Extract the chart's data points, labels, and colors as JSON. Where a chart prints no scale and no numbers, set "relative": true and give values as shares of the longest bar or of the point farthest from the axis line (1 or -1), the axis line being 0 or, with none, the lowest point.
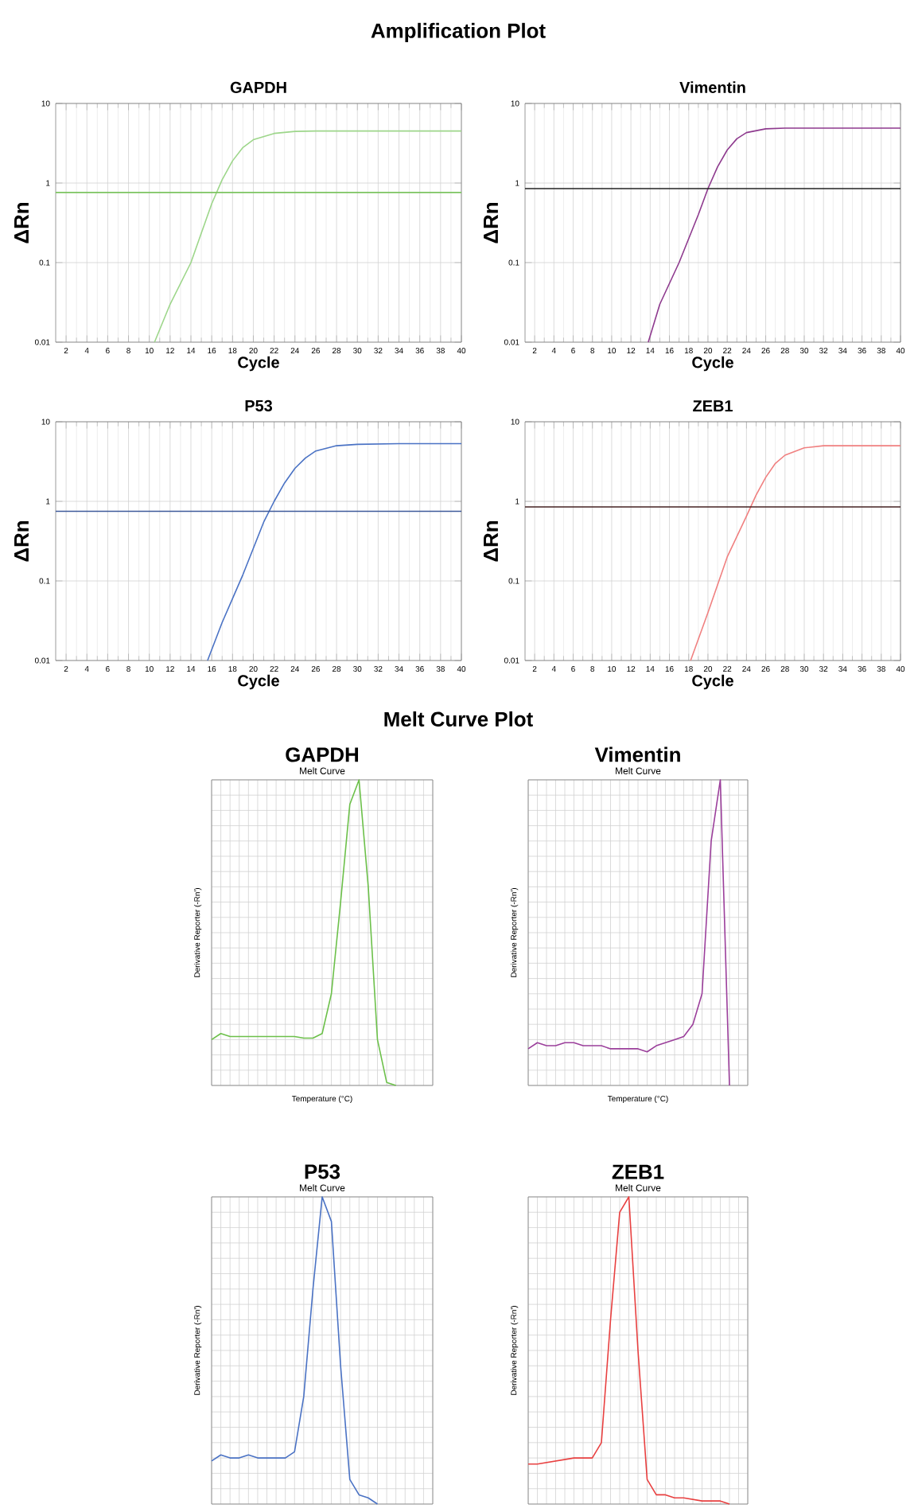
{
  "chart_data": [
    {
      "type": "line",
      "title": "GAPDH",
      "annotations": [
        "Amplification Plot"
      ],
      "xlabel": "Cycle",
      "ylabel": "ΔRn",
      "log": "y",
      "grid": true,
      "xlim": [
        1,
        40
      ],
      "xticks": [
        2,
        4,
        6,
        8,
        10,
        12,
        14,
        16,
        18,
        20,
        22,
        24,
        26,
        28,
        30,
        32,
        34,
        36,
        38,
        40
      ],
      "ylim": [
        0.01,
        10
      ],
      "yticks": [
        0.01,
        0.1,
        1,
        10
      ],
      "ref_lines": [
        {
          "axis": "y",
          "value": 0.76,
          "color": "#7cc460"
        }
      ],
      "series": [
        {
          "color": "#9dd68a",
          "x": [
            10.5,
            12,
            14,
            16,
            17,
            18,
            19,
            20,
            22,
            24,
            26,
            30,
            40
          ],
          "values": [
            0.01,
            0.03,
            0.1,
            0.55,
            1.1,
            1.9,
            2.8,
            3.5,
            4.2,
            4.45,
            4.5,
            4.5,
            4.5
          ]
        }
      ]
    },
    {
      "type": "line",
      "title": "Vimentin",
      "xlabel": "Cycle",
      "ylabel": "ΔRn",
      "log": "y",
      "grid": true,
      "xlim": [
        1,
        40
      ],
      "xticks": [
        2,
        4,
        6,
        8,
        10,
        12,
        14,
        16,
        18,
        20,
        22,
        24,
        26,
        28,
        30,
        32,
        34,
        36,
        38,
        40
      ],
      "ylim": [
        0.01,
        10
      ],
      "yticks": [
        0.01,
        0.1,
        1,
        10
      ],
      "ref_lines": [
        {
          "axis": "y",
          "value": 0.85,
          "color": "#222222"
        }
      ],
      "series": [
        {
          "color": "#8e3a8e",
          "x": [
            13.8,
            15,
            17,
            19,
            20,
            21,
            22,
            23,
            24,
            26,
            28,
            30,
            40
          ],
          "values": [
            0.01,
            0.03,
            0.1,
            0.4,
            0.85,
            1.6,
            2.6,
            3.6,
            4.3,
            4.8,
            4.9,
            4.9,
            4.9
          ]
        }
      ]
    },
    {
      "type": "line",
      "title": "P53",
      "xlabel": "Cycle",
      "ylabel": "ΔRn",
      "log": "y",
      "grid": true,
      "xlim": [
        1,
        40
      ],
      "xticks": [
        2,
        4,
        6,
        8,
        10,
        12,
        14,
        16,
        18,
        20,
        22,
        24,
        26,
        28,
        30,
        32,
        34,
        36,
        38,
        40
      ],
      "ylim": [
        0.01,
        10
      ],
      "yticks": [
        0.01,
        0.1,
        1,
        10
      ],
      "ref_lines": [
        {
          "axis": "y",
          "value": 0.75,
          "color": "#3d5a9a"
        }
      ],
      "series": [
        {
          "color": "#4a72c4",
          "x": [
            15.6,
            17,
            19,
            21,
            22,
            23,
            24,
            25,
            26,
            28,
            30,
            34,
            40
          ],
          "values": [
            0.01,
            0.03,
            0.12,
            0.55,
            1.0,
            1.7,
            2.6,
            3.5,
            4.3,
            5.0,
            5.2,
            5.3,
            5.3
          ]
        }
      ]
    },
    {
      "type": "line",
      "title": "ZEB1",
      "xlabel": "Cycle",
      "ylabel": "ΔRn",
      "log": "y",
      "grid": true,
      "xlim": [
        1,
        40
      ],
      "xticks": [
        2,
        4,
        6,
        8,
        10,
        12,
        14,
        16,
        18,
        20,
        22,
        24,
        26,
        28,
        30,
        32,
        34,
        36,
        38,
        40
      ],
      "ylim": [
        0.01,
        10
      ],
      "yticks": [
        0.01,
        0.1,
        1,
        10
      ],
      "ref_lines": [
        {
          "axis": "y",
          "value": 0.85,
          "color": "#442222"
        }
      ],
      "series": [
        {
          "color": "#f08080",
          "x": [
            18.2,
            20,
            22,
            24,
            25,
            26,
            27,
            28,
            30,
            32,
            34,
            40
          ],
          "values": [
            0.01,
            0.04,
            0.2,
            0.65,
            1.2,
            2.0,
            3.0,
            3.8,
            4.7,
            5.0,
            5.0,
            5.0
          ]
        }
      ]
    },
    {
      "type": "line",
      "title": "GAPDH",
      "subtitle": "Melt Curve",
      "annotations": [
        "Melt Curve Plot"
      ],
      "xlabel": "Temperature (°C)",
      "ylabel": "Derivative Reporter (-Rn')",
      "relative": true,
      "grid": true,
      "categories": [
        null,
        null,
        null,
        null,
        null,
        null,
        null,
        null,
        null,
        null,
        null,
        null,
        null,
        null,
        null,
        null,
        null,
        null,
        null,
        null,
        null,
        null,
        null,
        null,
        null
      ],
      "series": [
        {
          "color": "#6cc04a",
          "values": [
            0.15,
            0.17,
            0.16,
            0.16,
            0.16,
            0.16,
            0.16,
            0.16,
            0.16,
            0.16,
            0.155,
            0.155,
            0.17,
            0.3,
            0.6,
            0.92,
            1.0,
            0.65,
            0.15,
            0.01,
            0.0,
            null,
            null,
            null,
            null
          ]
        }
      ]
    },
    {
      "type": "line",
      "title": "Vimentin",
      "subtitle": "Melt Curve",
      "xlabel": "Temperature (°C)",
      "ylabel": "Derivative Reporter (-Rn')",
      "relative": true,
      "grid": true,
      "categories": [
        null,
        null,
        null,
        null,
        null,
        null,
        null,
        null,
        null,
        null,
        null,
        null,
        null,
        null,
        null,
        null,
        null,
        null,
        null,
        null,
        null,
        null,
        null,
        null,
        null
      ],
      "series": [
        {
          "color": "#9b3f9b",
          "values": [
            0.12,
            0.14,
            0.13,
            0.13,
            0.14,
            0.14,
            0.13,
            0.13,
            0.13,
            0.12,
            0.12,
            0.12,
            0.12,
            0.11,
            0.13,
            0.14,
            0.15,
            0.16,
            0.2,
            0.3,
            0.8,
            1.0,
            0.0,
            null,
            null
          ]
        }
      ]
    },
    {
      "type": "line",
      "title": "P53",
      "subtitle": "Melt Curve",
      "ylabel": "Derivative Reporter (-Rn')",
      "relative": true,
      "grid": true,
      "categories": [
        null,
        null,
        null,
        null,
        null,
        null,
        null,
        null,
        null,
        null,
        null,
        null,
        null,
        null,
        null,
        null,
        null,
        null,
        null,
        null,
        null,
        null,
        null,
        null,
        null
      ],
      "series": [
        {
          "color": "#4a72c4",
          "values": [
            0.14,
            0.16,
            0.15,
            0.15,
            0.16,
            0.15,
            0.15,
            0.15,
            0.15,
            0.17,
            0.35,
            0.7,
            1.0,
            0.92,
            0.45,
            0.08,
            0.03,
            0.02,
            0.0,
            null,
            null,
            null,
            null,
            null,
            null
          ]
        }
      ]
    },
    {
      "type": "line",
      "title": "ZEB1",
      "subtitle": "Melt Curve",
      "ylabel": "Derivative Reporter (-Rn')",
      "relative": true,
      "grid": true,
      "categories": [
        null,
        null,
        null,
        null,
        null,
        null,
        null,
        null,
        null,
        null,
        null,
        null,
        null,
        null,
        null,
        null,
        null,
        null,
        null,
        null,
        null,
        null,
        null,
        null,
        null
      ],
      "series": [
        {
          "color": "#e84040",
          "values": [
            0.13,
            0.13,
            0.135,
            0.14,
            0.145,
            0.15,
            0.15,
            0.15,
            0.2,
            0.6,
            0.95,
            1.0,
            0.5,
            0.08,
            0.03,
            0.03,
            0.02,
            0.02,
            0.015,
            0.01,
            0.01,
            0.01,
            0.0,
            null,
            null
          ]
        }
      ]
    }
  ]
}
